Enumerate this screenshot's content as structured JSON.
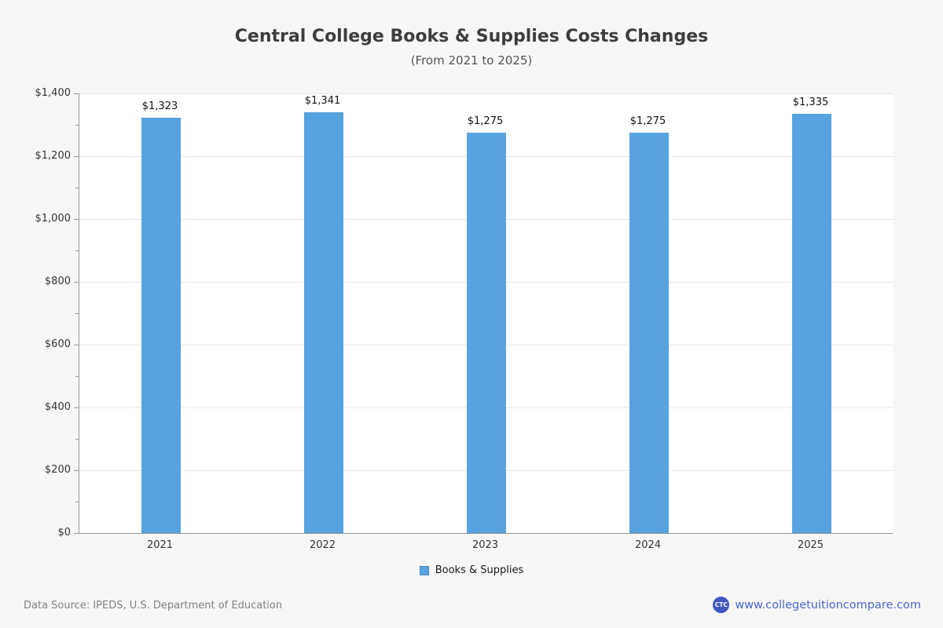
{
  "page": {
    "background": "#f7f7f7",
    "footer": {
      "data_source": "Data Source: IPEDS, U.S. Department of Education",
      "brand_icon_text": "CTC",
      "brand_url": "www.collegetuitioncompare.com"
    }
  },
  "chart_data": {
    "type": "bar",
    "title": "Central College Books & Supplies Costs Changes",
    "subtitle": "(From 2021 to 2025)",
    "categories": [
      "2021",
      "2022",
      "2023",
      "2024",
      "2025"
    ],
    "series": [
      {
        "name": "Books & Supplies",
        "values": [
          1323,
          1341,
          1275,
          1275,
          1335
        ],
        "labels": [
          "$1,323",
          "$1,341",
          "$1,275",
          "$1,275",
          "$1,335"
        ]
      }
    ],
    "xlabel": "",
    "ylabel": "",
    "ylim": [
      0,
      1400
    ],
    "y_major_step": 200,
    "y_minor_step": 100,
    "y_tick_labels": [
      "$0",
      "$200",
      "$400",
      "$600",
      "$800",
      "$1,000",
      "$1,200",
      "$1,400"
    ],
    "grid": true,
    "legend_position": "bottom",
    "colors": {
      "bar": "#56a3e0",
      "bar_border": "#4e87bf",
      "grid": "#e8e8e8",
      "axis": "#9a9a9a",
      "title": "#3d3d3d",
      "subtitle": "#555555",
      "value_label": "#111111",
      "tick_text": "#333333",
      "footer_text": "#808080",
      "brand_blue": "#3f58c2",
      "link_blue": "#4966cc"
    }
  }
}
